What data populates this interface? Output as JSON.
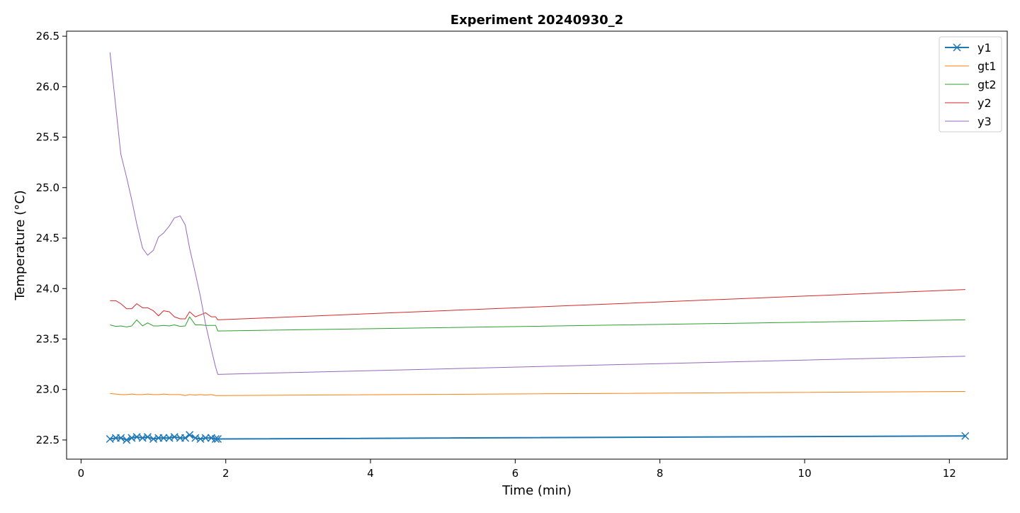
{
  "colors": {
    "y1": "#1f77b4",
    "gt1": "#ff7f0e",
    "gt2": "#2ca02c",
    "y2": "#d62728",
    "y3": "#9467bd"
  },
  "chart_data": {
    "type": "line",
    "title": "Experiment 20240930_2",
    "xlabel": "Time (min)",
    "ylabel": "Temperature (°C)",
    "xlim": [
      -0.2,
      12.8
    ],
    "ylim": [
      22.31,
      26.55
    ],
    "xticks": [
      0,
      2,
      4,
      6,
      8,
      10,
      12
    ],
    "yticks": [
      22.5,
      23.0,
      23.5,
      24.0,
      24.5,
      25.0,
      25.5,
      26.0,
      26.5
    ],
    "grid": false,
    "legend": "top-right",
    "series": [
      {
        "name": "y1",
        "color": "#1f77b4",
        "marker": "x",
        "x": [
          0.4,
          0.48,
          0.55,
          0.63,
          0.7,
          0.77,
          0.85,
          0.92,
          1.0,
          1.07,
          1.14,
          1.22,
          1.29,
          1.37,
          1.44,
          1.5,
          1.58,
          1.65,
          1.72,
          1.8,
          1.86,
          1.89,
          12.22
        ],
        "y": [
          22.51,
          22.52,
          22.52,
          22.5,
          22.52,
          22.53,
          22.52,
          22.53,
          22.51,
          22.52,
          22.52,
          22.52,
          22.53,
          22.52,
          22.52,
          22.55,
          22.52,
          22.51,
          22.52,
          22.52,
          22.51,
          22.51,
          22.54
        ]
      },
      {
        "name": "gt1",
        "color": "#ff7f0e",
        "x": [
          0.4,
          0.48,
          0.55,
          0.63,
          0.7,
          0.77,
          0.85,
          0.92,
          1.0,
          1.07,
          1.14,
          1.22,
          1.29,
          1.37,
          1.44,
          1.5,
          1.58,
          1.65,
          1.72,
          1.8,
          1.86,
          1.89,
          12.22
        ],
        "y": [
          22.96,
          22.955,
          22.95,
          22.95,
          22.955,
          22.95,
          22.95,
          22.955,
          22.95,
          22.95,
          22.955,
          22.95,
          22.95,
          22.95,
          22.94,
          22.95,
          22.945,
          22.95,
          22.945,
          22.95,
          22.94,
          22.94,
          22.98
        ]
      },
      {
        "name": "gt2",
        "color": "#2ca02c",
        "x": [
          0.4,
          0.48,
          0.55,
          0.63,
          0.7,
          0.77,
          0.85,
          0.92,
          1.0,
          1.07,
          1.14,
          1.22,
          1.29,
          1.37,
          1.44,
          1.5,
          1.58,
          1.65,
          1.72,
          1.8,
          1.86,
          1.89,
          12.22
        ],
        "y": [
          23.64,
          23.625,
          23.63,
          23.62,
          23.63,
          23.69,
          23.63,
          23.66,
          23.63,
          23.63,
          23.635,
          23.63,
          23.64,
          23.625,
          23.63,
          23.72,
          23.64,
          23.64,
          23.635,
          23.635,
          23.635,
          23.58,
          23.69
        ]
      },
      {
        "name": "y2",
        "color": "#d62728",
        "x": [
          0.4,
          0.48,
          0.55,
          0.63,
          0.7,
          0.77,
          0.85,
          0.92,
          1.0,
          1.07,
          1.14,
          1.22,
          1.29,
          1.37,
          1.44,
          1.5,
          1.58,
          1.65,
          1.72,
          1.8,
          1.86,
          1.89,
          12.22
        ],
        "y": [
          23.88,
          23.88,
          23.85,
          23.8,
          23.8,
          23.85,
          23.81,
          23.81,
          23.78,
          23.73,
          23.78,
          23.77,
          23.72,
          23.7,
          23.7,
          23.77,
          23.72,
          23.74,
          23.76,
          23.72,
          23.72,
          23.69,
          23.99
        ]
      },
      {
        "name": "y3",
        "color": "#9467bd",
        "x": [
          0.4,
          0.48,
          0.55,
          0.63,
          0.7,
          0.77,
          0.85,
          0.92,
          1.0,
          1.07,
          1.14,
          1.22,
          1.29,
          1.37,
          1.44,
          1.5,
          1.58,
          1.65,
          1.72,
          1.8,
          1.86,
          1.89,
          12.22
        ],
        "y": [
          26.34,
          25.8,
          25.33,
          25.1,
          24.88,
          24.64,
          24.4,
          24.33,
          24.38,
          24.51,
          24.55,
          24.62,
          24.7,
          24.72,
          24.63,
          24.4,
          24.15,
          23.92,
          23.65,
          23.4,
          23.22,
          23.15,
          23.33
        ]
      }
    ]
  }
}
